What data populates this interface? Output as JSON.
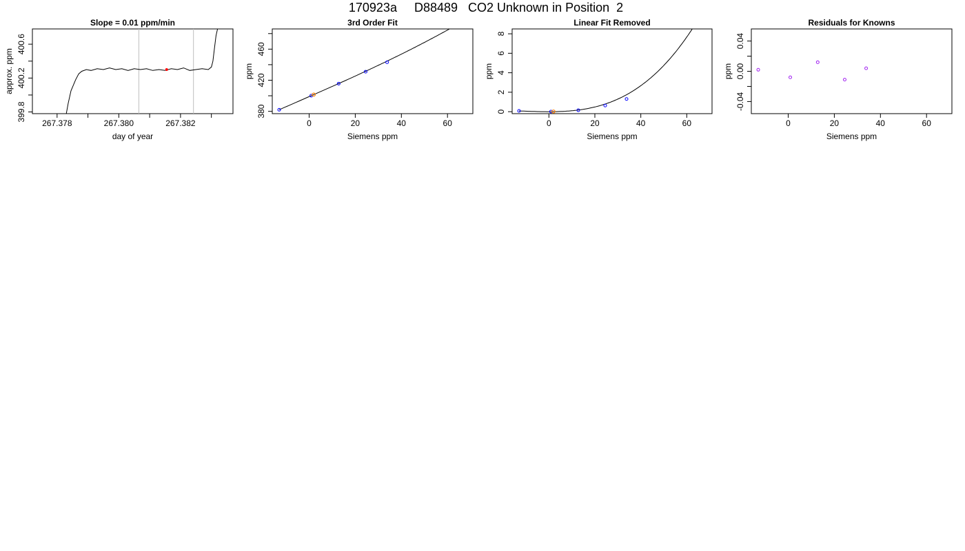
{
  "page": {
    "title": "170923a     D88489   CO2 Unknown in Position  2"
  },
  "colors": {
    "axis": "#000000",
    "curve": "#000000",
    "known_points": "#0000ff",
    "unknown_point": "#ff7f00",
    "marker_red": "#ff0000",
    "residual_points": "#a020f0",
    "vertical_lines": "#bebebe"
  },
  "chart_data": [
    {
      "type": "line",
      "title": "Slope =  0.01  ppm/min",
      "xlabel": "day of year",
      "ylabel": "approx. ppm",
      "xlim": [
        267.3772,
        267.3837
      ],
      "ylim": [
        399.78,
        400.78
      ],
      "xticks": [
        267.378,
        267.379,
        267.38,
        267.381,
        267.382,
        267.383
      ],
      "xticklabels": [
        "267.378",
        "",
        "267.380",
        "",
        "267.382",
        ""
      ],
      "yticks": [
        399.8,
        400.0,
        400.2,
        400.4,
        400.6,
        400.8
      ],
      "yticklabels": [
        "399.8",
        "",
        "400.2",
        "",
        "400.6",
        ""
      ],
      "vlines": [
        267.38065,
        267.38242
      ],
      "marker": {
        "x": 267.38155,
        "y": 400.3
      },
      "series": [
        {
          "x": [
            267.3783,
            267.37836,
            267.37845,
            267.3786,
            267.3787,
            267.3788,
            267.37895,
            267.3791,
            267.3793,
            267.3795,
            267.3797,
            267.3799,
            267.3801,
            267.3803,
            267.3805,
            267.3807,
            267.3809,
            267.3811,
            267.3813,
            267.3815,
            267.3817,
            267.3819,
            267.3821,
            267.3823,
            267.3825,
            267.3827,
            267.3829,
            267.383,
            267.38305,
            267.3831,
            267.38315,
            267.3832
          ],
          "y": [
            399.78,
            399.9,
            400.05,
            400.18,
            400.25,
            400.28,
            400.3,
            400.29,
            400.31,
            400.3,
            400.32,
            400.3,
            400.31,
            400.29,
            400.31,
            400.3,
            400.31,
            400.29,
            400.3,
            400.29,
            400.31,
            400.3,
            400.32,
            400.29,
            400.3,
            400.31,
            400.3,
            400.33,
            400.4,
            400.55,
            400.7,
            400.78
          ]
        }
      ]
    },
    {
      "type": "line",
      "title": "3rd Order Fit",
      "xlabel": "Siemens ppm",
      "ylabel": "ppm",
      "xlim": [
        -16,
        71
      ],
      "ylim": [
        377,
        486
      ],
      "xticks": [
        0,
        20,
        40,
        60
      ],
      "xticklabels": [
        "0",
        "20",
        "40",
        "60"
      ],
      "yticks": [
        380,
        400,
        420,
        440,
        460,
        480
      ],
      "yticklabels": [
        "380",
        "",
        "420",
        "",
        "460",
        ""
      ],
      "curve": {
        "x0": -13,
        "x1": 68,
        "a": 398.9,
        "b": 1.3,
        "c": 0.00075,
        "d": 2.3e-05
      },
      "known_points": {
        "x": [
          -13.0,
          0.9,
          12.8,
          24.5,
          33.8
        ],
        "y": [
          382.0,
          400.1,
          415.6,
          431.0,
          443.1
        ]
      },
      "unknown_point": {
        "x": 2.0,
        "y": 401.5
      }
    },
    {
      "type": "line",
      "title": "Linear Fit Removed",
      "xlabel": "Siemens ppm",
      "ylabel": "ppm",
      "xlim": [
        -16,
        71
      ],
      "ylim": [
        -0.2,
        8.5
      ],
      "xticks": [
        0,
        20,
        40,
        60
      ],
      "xticklabels": [
        "0",
        "20",
        "40",
        "60"
      ],
      "yticks": [
        0,
        2,
        4,
        6,
        8
      ],
      "yticklabels": [
        "0",
        "2",
        "4",
        "6",
        "8"
      ],
      "curve": {
        "x0": -13,
        "x1": 68,
        "a": 0.0,
        "b": 0.0,
        "c": 0.00075,
        "d": 2.3e-05
      },
      "known_points": {
        "x": [
          -13.0,
          0.9,
          12.8,
          24.5,
          33.8
        ],
        "y": [
          0.08,
          0.01,
          0.15,
          0.63,
          1.3
        ]
      },
      "unknown_point": {
        "x": 2.0,
        "y": 0.02
      }
    },
    {
      "type": "scatter",
      "title": "Residuals for Knowns",
      "xlabel": "Siemens ppm",
      "ylabel": "ppm",
      "xlim": [
        -16,
        71
      ],
      "ylim": [
        -0.056,
        0.056
      ],
      "xticks": [
        0,
        20,
        40,
        60
      ],
      "xticklabels": [
        "0",
        "20",
        "40",
        "60"
      ],
      "yticks": [
        -0.04,
        -0.02,
        0.0,
        0.02,
        0.04
      ],
      "yticklabels": [
        "-0.04",
        "",
        "0.00",
        "",
        "0.04"
      ],
      "points": {
        "x": [
          -13.0,
          0.9,
          12.8,
          24.5,
          33.8
        ],
        "y": [
          0.002,
          -0.008,
          0.012,
          -0.011,
          0.004
        ]
      }
    }
  ]
}
